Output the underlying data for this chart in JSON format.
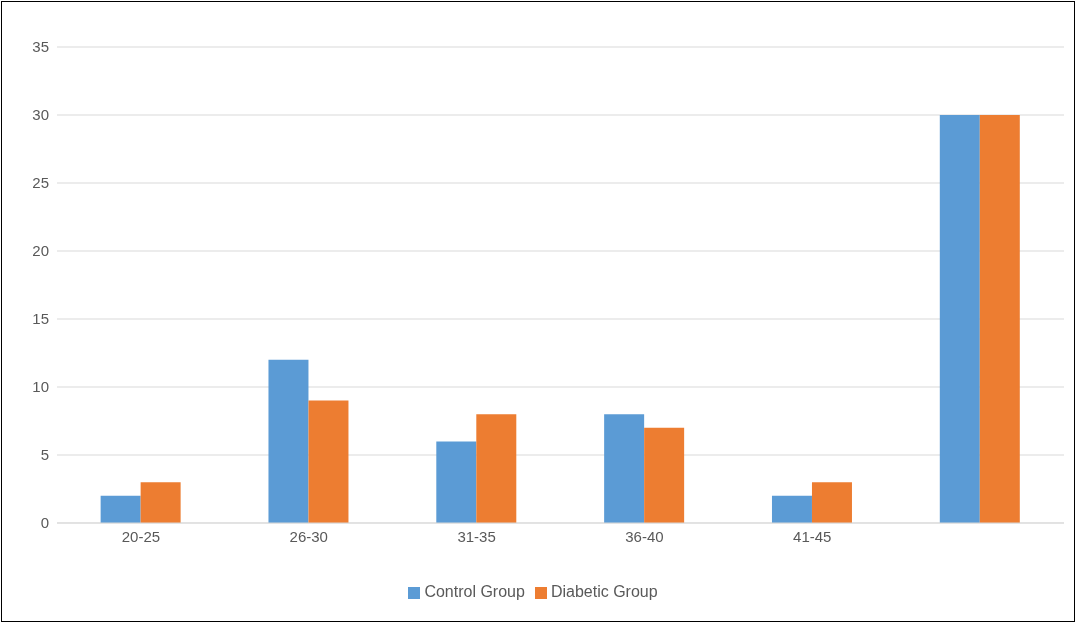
{
  "chart_data": {
    "type": "bar",
    "categories": [
      "20-25",
      "26-30",
      "31-35",
      "36-40",
      "41-45",
      null
    ],
    "series": [
      {
        "name": "Control Group",
        "color": "#5b9bd5",
        "values": [
          2,
          12,
          6,
          8,
          2,
          30
        ]
      },
      {
        "name": "Diabetic Group",
        "color": "#ed7d31",
        "values": [
          3,
          9,
          8,
          7,
          3,
          30
        ]
      }
    ],
    "ylim": [
      0,
      35
    ],
    "yticks": [
      0,
      5,
      10,
      15,
      20,
      25,
      30,
      35
    ],
    "grid": "y",
    "legend": "bottom"
  }
}
